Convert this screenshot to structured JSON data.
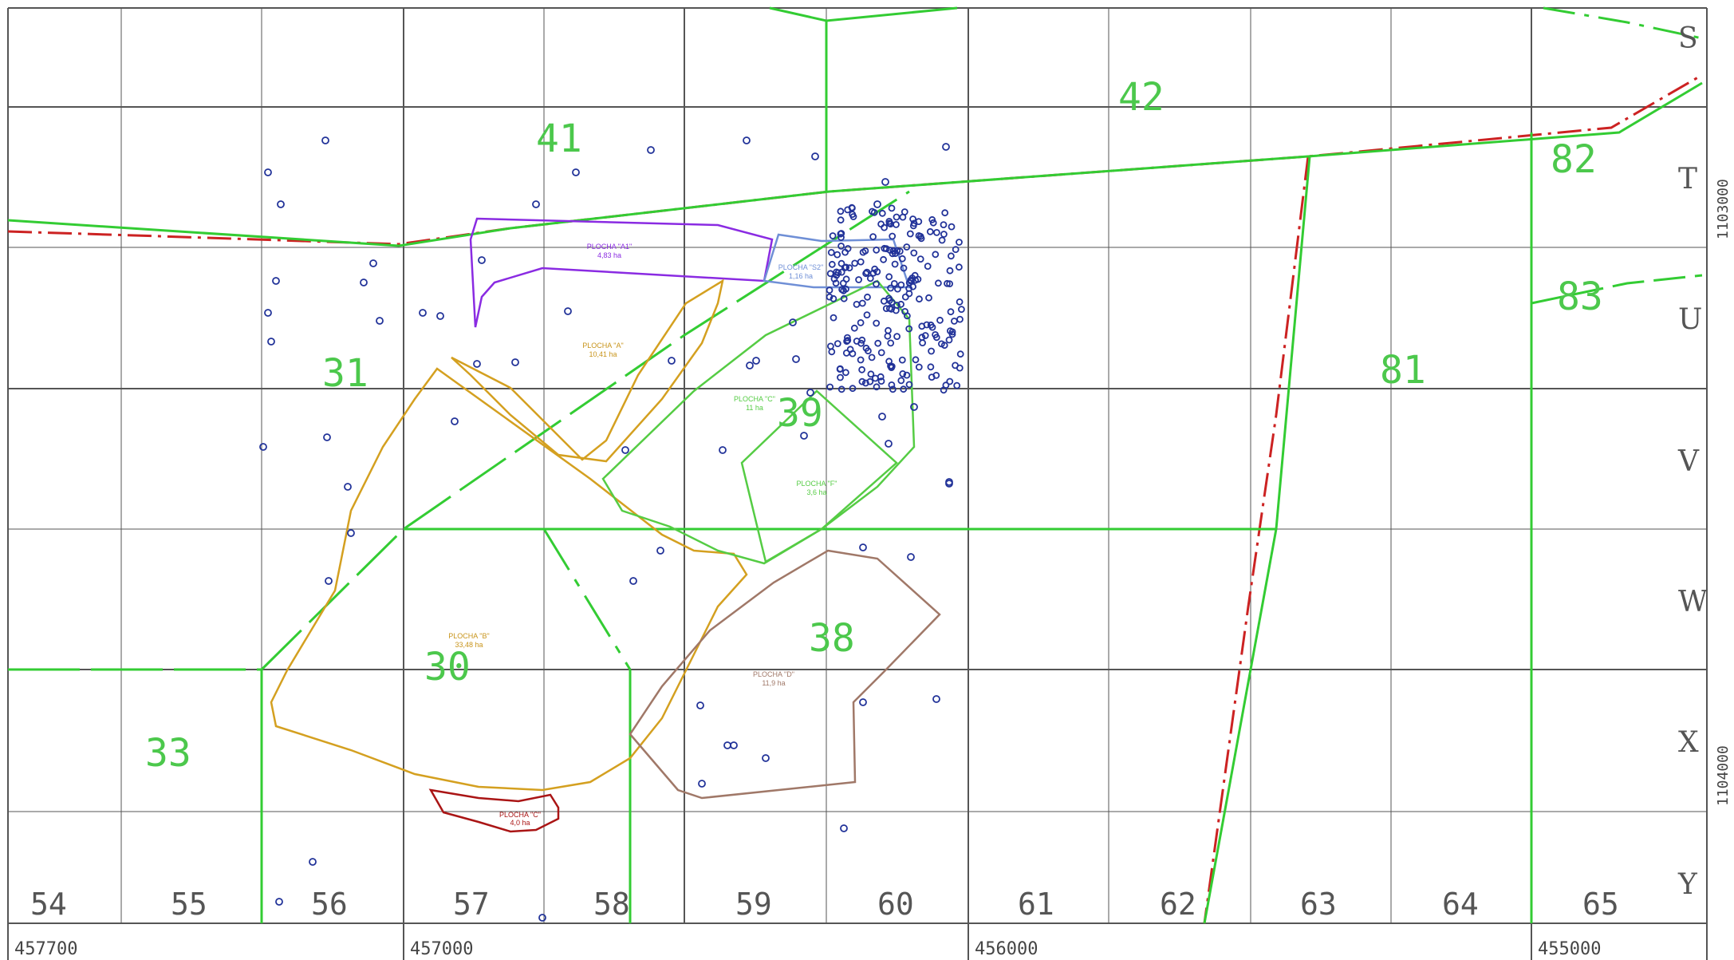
{
  "map": {
    "column_labels": [
      "54",
      "55",
      "56",
      "57",
      "58",
      "59",
      "60",
      "61",
      "62",
      "63",
      "64",
      "65"
    ],
    "row_labels": [
      "S",
      "T",
      "U",
      "V",
      "W",
      "X",
      "Y"
    ],
    "bottom_coords": [
      "457700",
      "457000",
      "456000",
      "455000"
    ],
    "side_coords": [
      "1103000",
      "1104000"
    ],
    "section_labels": [
      "41",
      "42",
      "82",
      "83",
      "81",
      "31",
      "39",
      "38",
      "30",
      "33"
    ],
    "plots": {
      "a1": {
        "name": "PLOCHA \"A1\"",
        "area": "4,83 ha"
      },
      "s2": {
        "name": "PLOCHA \"S2\"",
        "area": "1,16 ha"
      },
      "a": {
        "name": "PLOCHA \"A\"",
        "area": "10,41 ha"
      },
      "c1": {
        "name": "PLOCHA \"C\"",
        "area": "11 ha"
      },
      "f": {
        "name": "PLOCHA \"F\"",
        "area": "3,6 ha"
      },
      "b": {
        "name": "PLOCHA \"B\"",
        "area": "33,48 ha"
      },
      "d": {
        "name": "PLOCHA \"D\"",
        "area": "11,9 ha"
      },
      "c": {
        "name": "PLOCHA \"C\"",
        "area": "4,0 ha"
      }
    },
    "colors": {
      "grid": "#555555",
      "section_line": "#33cc33",
      "boundary_red": "#cc2222",
      "plot_a1": "#8a2be2",
      "plot_s2": "#6f8fd6",
      "plot_a_b": "#d4a020",
      "plot_d": "#a07868",
      "plot_c": "#aa1515",
      "plot_green": "#55cc44",
      "points": "#223399"
    }
  }
}
